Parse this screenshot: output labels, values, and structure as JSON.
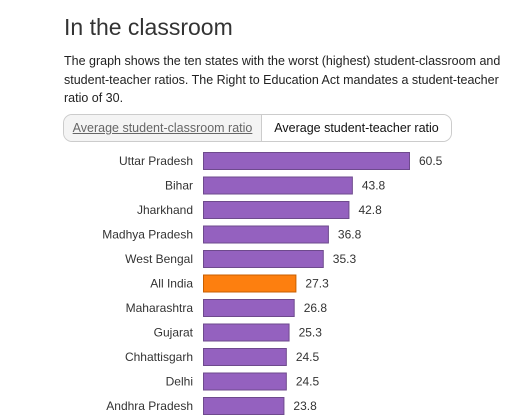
{
  "header": {
    "title": "In the classroom",
    "description": "The graph shows the ten states with the worst (highest) student-classroom and student-teacher ratios. The Right to Education Act mandates a student-teacher ratio of 30."
  },
  "tabs": [
    {
      "label": "Average student-classroom ratio",
      "active": false
    },
    {
      "label": "Average student-teacher ratio",
      "active": true
    }
  ],
  "colors": {
    "bar": "#9461bf",
    "highlight": "#fd7f0f",
    "bar_border": "#6e4a8d",
    "highlight_border": "#c85f00"
  },
  "chart_data": {
    "type": "bar",
    "orientation": "horizontal",
    "title": "",
    "xlabel": "",
    "ylabel": "",
    "xlim": [
      0,
      60.5
    ],
    "grid": false,
    "legend": "none",
    "categories": [
      "Uttar Pradesh",
      "Bihar",
      "Jharkhand",
      "Madhya Pradesh",
      "West Bengal",
      "All India",
      "Maharashtra",
      "Gujarat",
      "Chhattisgarh",
      "Delhi",
      "Andhra Pradesh"
    ],
    "values": [
      60.5,
      43.8,
      42.8,
      36.8,
      35.3,
      27.3,
      26.8,
      25.3,
      24.5,
      24.5,
      23.8
    ],
    "value_labels": [
      "60.5",
      "43.8",
      "42.8",
      "36.8",
      "35.3",
      "27.3",
      "26.8",
      "25.3",
      "24.5",
      "24.5",
      "23.8"
    ],
    "highlight_category": "All India"
  }
}
